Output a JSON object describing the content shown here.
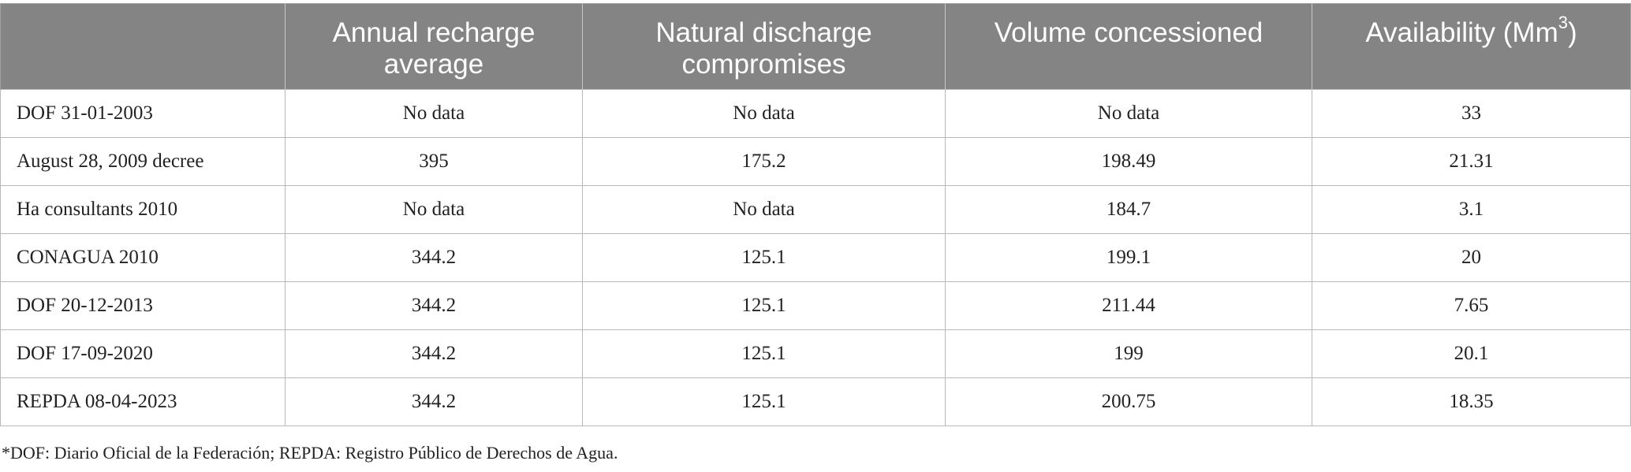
{
  "table": {
    "headers": [
      "",
      "Annual recharge average",
      "Natural discharge compromises",
      "Volume concessioned",
      "Availability (Mm"
    ],
    "availability_superscript": "3",
    "availability_suffix": ")",
    "rows": [
      [
        "DOF 31-01-2003",
        "No data",
        "No data",
        "No data",
        "33"
      ],
      [
        "August 28, 2009 decree",
        "395",
        "175.2",
        "198.49",
        "21.31"
      ],
      [
        "Ha consultants 2010",
        "No data",
        "No data",
        "184.7",
        "3.1"
      ],
      [
        "CONAGUA 2010",
        "344.2",
        "125.1",
        "199.1",
        "20"
      ],
      [
        "DOF 20-12-2013",
        "344.2",
        "125.1",
        "211.44",
        "7.65"
      ],
      [
        "DOF 17-09-2020",
        "344.2",
        "125.1",
        "199",
        "20.1"
      ],
      [
        "REPDA 08-04-2023",
        "344.2",
        "125.1",
        "200.75",
        "18.35"
      ]
    ]
  },
  "footnote": "*DOF: Diario Oficial de la Federación; REPDA: Registro Público de Derechos de Agua.",
  "colors": {
    "header_bg": "#848484",
    "header_text": "#ffffff",
    "grid": "#b8b8b8",
    "body_text": "#222222"
  }
}
